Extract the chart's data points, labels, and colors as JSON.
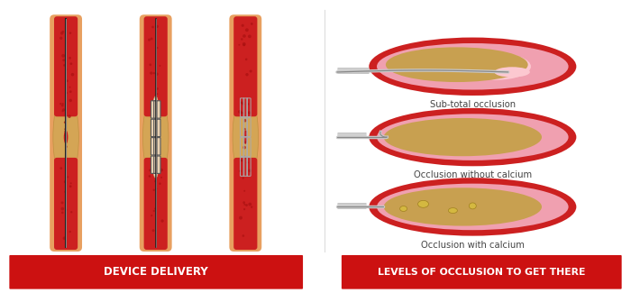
{
  "bg_color": "#ffffff",
  "red_banner_color": "#cc1111",
  "banner_text_color": "#ffffff",
  "left_banner_text": "DEVICE DELIVERY",
  "right_banner_text": "LEVELS OF OCCLUSION TO GET THERE",
  "label_sub_total": "Sub-total occlusion",
  "label_no_calcium": "Occlusion without calcium",
  "label_calcium": "Occlusion with calcium",
  "vessel_outer": "#c0392b",
  "vessel_wall_tan": "#e8b87a",
  "vessel_lumen_red": "#cc2222",
  "vessel_lumen_bright": "#dd3333",
  "plaque_tan": "#d4a555",
  "plaque_light": "#e8c878",
  "stent_gray": "#888888",
  "wire_light": "#cccccc",
  "wire_dark": "#777777",
  "calcium_yellow": "#d4b840",
  "pink_wall": "#f0a0a8",
  "pink_lumen": "#f8c8cc",
  "dot_color": "#aa1111"
}
